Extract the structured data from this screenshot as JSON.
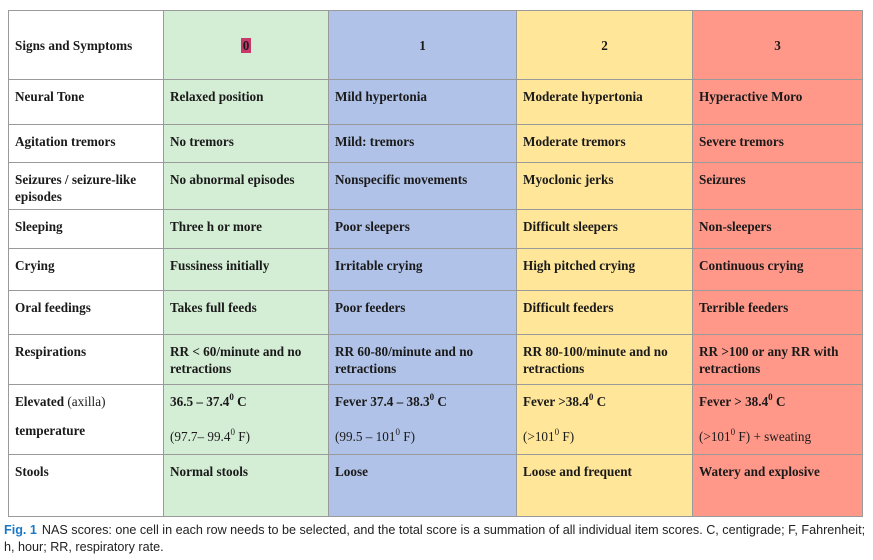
{
  "table": {
    "header": {
      "label": "Signs and Symptoms",
      "scores": [
        "0",
        "1",
        "2",
        "3"
      ]
    },
    "rows": [
      {
        "sign": "Neural Tone",
        "cells": [
          "Relaxed position",
          "Mild hypertonia",
          "Moderate hypertonia",
          "Hyperactive Moro"
        ]
      },
      {
        "sign": "Agitation tremors",
        "cells": [
          "No tremors",
          "Mild: tremors",
          "Moderate tremors",
          "Severe tremors"
        ]
      },
      {
        "sign": "Seizures / seizure-like episodes",
        "cells": [
          "No abnormal episodes",
          "Nonspecific movements",
          "Myoclonic jerks",
          "Seizures"
        ]
      },
      {
        "sign": "Sleeping",
        "cells": [
          "Three h or more",
          "Poor sleepers",
          "Difficult sleepers",
          "Non-sleepers"
        ]
      },
      {
        "sign": "Crying",
        "cells": [
          "Fussiness initially",
          "Irritable crying",
          "High pitched crying",
          "Continuous crying"
        ]
      },
      {
        "sign": "Oral feedings",
        "cells": [
          "Takes full feeds",
          "Poor feeders",
          "Difficult feeders",
          "Terrible feeders"
        ]
      },
      {
        "sign": "Respirations",
        "cells": [
          "RR < 60/minute and no retractions",
          "RR 60-80/minute and no retractions",
          "RR 80-100/minute and no retractions",
          "RR >100 or any RR with retractions"
        ]
      }
    ],
    "temperature": {
      "sign_main": "Elevated",
      "sign_paren": " (axilla)",
      "sign_second": "temperature",
      "degree": "0",
      "cells": [
        {
          "line1": "36.5 – 37.4",
          "unit1": "C",
          "line2": "(97.7– 99.4",
          "unit2": "F)"
        },
        {
          "line1": "Fever 37.4 – 38.3",
          "unit1": "C",
          "line2": "(99.5 – 101",
          "unit2": "F)"
        },
        {
          "line1": "Fever >38.4",
          "unit1": "C",
          "line2": "(>101",
          "unit2": "F)"
        },
        {
          "line1": "Fever > 38.4",
          "unit1": "C",
          "line2": "(>101",
          "unit2": "F) + sweating"
        }
      ]
    },
    "stools": {
      "sign": "Stools",
      "cells": [
        "Normal stools",
        "Loose",
        "Loose and frequent",
        "Watery and explosive"
      ]
    }
  },
  "caption": {
    "label": "Fig. 1",
    "text": "NAS scores: one cell in each row needs to be selected, and the total score is a summation of all individual item scores. C, centigrade; F, Fahrenheit; h, hour; RR, respiratory rate."
  },
  "colors": {
    "score0": "#d4edd5",
    "score1": "#b0c2e7",
    "score2": "#ffe699",
    "score3": "#ff9889",
    "highlight": "#c8386a",
    "caption_label": "#1a79c7"
  }
}
